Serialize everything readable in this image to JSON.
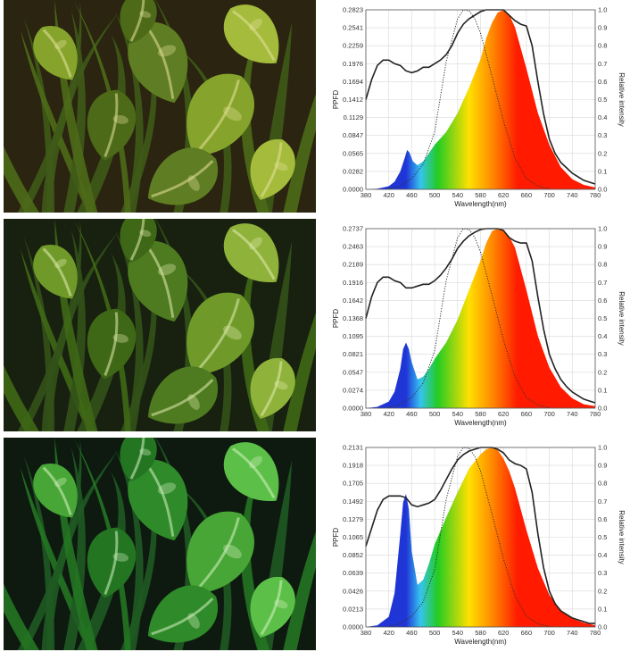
{
  "colors": {
    "frame": "#555555",
    "grid": "#d9d9d9",
    "ppfd_line": "#222222",
    "photopic_line": "#333333",
    "spectrum_blue": "#1f35d6",
    "spectrum_cyan": "#36c3f0",
    "spectrum_green": "#22cc22",
    "spectrum_yellow": "#ffe000",
    "spectrum_orange": "#ff8a00",
    "spectrum_red": "#ff1a00"
  },
  "rows": [
    {
      "photo": {
        "subject": "plant-foliage",
        "tint": "warm"
      },
      "chart_data": {
        "type": "area",
        "xlabel": "Wavelength(nm)",
        "ylabel": "PPFD",
        "y2label": "Relative intensity",
        "xlim": [
          380,
          780
        ],
        "ylim": [
          0,
          0.2823
        ],
        "y2lim": [
          0,
          1.0
        ],
        "x_ticks": [
          "380",
          "420",
          "460",
          "500",
          "540",
          "580",
          "620",
          "660",
          "700",
          "740",
          "780"
        ],
        "y_ticks": [
          "0.0000",
          "0.0282",
          "0.0565",
          "0.0847",
          "0.1129",
          "0.1412",
          "0.1694",
          "0.1976",
          "0.2259",
          "0.2541",
          "0.2823"
        ],
        "y2_ticks": [
          "0.0",
          "0.1",
          "0.2",
          "0.3",
          "0.4",
          "0.5",
          "0.6",
          "0.7",
          "0.8",
          "0.9",
          "1.0"
        ],
        "grid": true,
        "series": [
          {
            "kind": "spectrum-fill",
            "x": [
              380,
              400,
              420,
              430,
              440,
              448,
              452,
              456,
              462,
              470,
              480,
              490,
              500,
              520,
              540,
              560,
              580,
              590,
              600,
              610,
              620,
              630,
              640,
              660,
              680,
              700,
              720,
              740,
              760,
              780
            ],
            "y": [
              0,
              0.001,
              0.005,
              0.012,
              0.028,
              0.05,
              0.062,
              0.058,
              0.044,
              0.038,
              0.044,
              0.057,
              0.07,
              0.09,
              0.12,
              0.16,
              0.205,
              0.238,
              0.262,
              0.278,
              0.282,
              0.275,
              0.255,
              0.19,
              0.12,
              0.07,
              0.035,
              0.016,
              0.007,
              0.003
            ]
          },
          {
            "kind": "relative-line",
            "x": [
              380,
              390,
              400,
              410,
              420,
              430,
              440,
              450,
              460,
              470,
              480,
              490,
              500,
              510,
              520,
              530,
              540,
              550,
              560,
              570,
              580,
              590,
              600,
              610,
              620,
              630,
              640,
              650,
              660,
              670,
              680,
              690,
              700,
              710,
              720,
              730,
              740,
              750,
              760,
              770,
              780
            ],
            "y": [
              0.5,
              0.61,
              0.69,
              0.72,
              0.72,
              0.7,
              0.69,
              0.66,
              0.65,
              0.66,
              0.68,
              0.68,
              0.7,
              0.72,
              0.75,
              0.8,
              0.87,
              0.92,
              0.95,
              0.97,
              0.99,
              1.0,
              1.0,
              1.0,
              1.0,
              0.97,
              0.94,
              0.92,
              0.91,
              0.8,
              0.6,
              0.42,
              0.28,
              0.2,
              0.15,
              0.12,
              0.09,
              0.07,
              0.05,
              0.04,
              0.03
            ]
          },
          {
            "kind": "photopic-dotted",
            "x": [
              420,
              440,
              460,
              480,
              500,
              520,
              540,
              550,
              560,
              570,
              580,
              600,
              620,
              640,
              660,
              680,
              700
            ],
            "y": [
              0.005,
              0.02,
              0.06,
              0.14,
              0.32,
              0.71,
              0.95,
              1.0,
              0.995,
              0.95,
              0.87,
              0.63,
              0.38,
              0.175,
              0.06,
              0.017,
              0.004
            ]
          }
        ]
      }
    },
    {
      "photo": {
        "subject": "plant-foliage",
        "tint": "neutral"
      },
      "chart_data": {
        "type": "area",
        "xlabel": "Wavelength(nm)",
        "ylabel": "PPFD",
        "y2label": "Relative intensity",
        "xlim": [
          380,
          780
        ],
        "ylim": [
          0,
          0.2737
        ],
        "y2lim": [
          0,
          1.0
        ],
        "x_ticks": [
          "380",
          "420",
          "460",
          "500",
          "540",
          "580",
          "620",
          "660",
          "700",
          "740",
          "780"
        ],
        "y_ticks": [
          "0.0000",
          "0.0274",
          "0.0547",
          "0.0821",
          "0.1095",
          "0.1368",
          "0.1642",
          "0.1916",
          "0.2189",
          "0.2463",
          "0.2737"
        ],
        "y2_ticks": [
          "0.0",
          "0.1",
          "0.2",
          "0.3",
          "0.4",
          "0.5",
          "0.6",
          "0.7",
          "0.8",
          "0.9",
          "1.0"
        ],
        "grid": true,
        "series": [
          {
            "kind": "spectrum-fill",
            "x": [
              380,
              400,
              420,
              430,
              440,
              445,
              450,
              455,
              460,
              470,
              480,
              490,
              500,
              520,
              540,
              560,
              580,
              590,
              600,
              610,
              620,
              630,
              640,
              660,
              680,
              700,
              720,
              740,
              760,
              780
            ],
            "y": [
              0,
              0.002,
              0.01,
              0.025,
              0.06,
              0.09,
              0.1,
              0.09,
              0.07,
              0.044,
              0.048,
              0.06,
              0.075,
              0.1,
              0.135,
              0.18,
              0.225,
              0.252,
              0.27,
              0.2737,
              0.272,
              0.262,
              0.245,
              0.18,
              0.11,
              0.062,
              0.032,
              0.015,
              0.006,
              0.003
            ]
          },
          {
            "kind": "relative-line",
            "x": [
              380,
              390,
              400,
              410,
              420,
              430,
              440,
              450,
              460,
              470,
              480,
              490,
              500,
              510,
              520,
              530,
              540,
              550,
              560,
              570,
              580,
              590,
              600,
              610,
              620,
              630,
              640,
              650,
              660,
              670,
              680,
              690,
              700,
              710,
              720,
              730,
              740,
              750,
              760,
              770,
              780
            ],
            "y": [
              0.5,
              0.62,
              0.7,
              0.73,
              0.73,
              0.71,
              0.7,
              0.67,
              0.67,
              0.68,
              0.69,
              0.69,
              0.71,
              0.74,
              0.78,
              0.83,
              0.89,
              0.93,
              0.96,
              0.98,
              0.995,
              1.0,
              1.0,
              1.0,
              0.99,
              0.95,
              0.93,
              0.92,
              0.92,
              0.82,
              0.62,
              0.44,
              0.3,
              0.22,
              0.16,
              0.12,
              0.09,
              0.07,
              0.05,
              0.04,
              0.03
            ]
          },
          {
            "kind": "photopic-dotted",
            "x": [
              420,
              440,
              460,
              480,
              500,
              520,
              540,
              550,
              560,
              570,
              580,
              600,
              620,
              640,
              660,
              680,
              700
            ],
            "y": [
              0.005,
              0.02,
              0.06,
              0.14,
              0.32,
              0.71,
              0.95,
              1.0,
              0.995,
              0.95,
              0.87,
              0.63,
              0.38,
              0.175,
              0.06,
              0.017,
              0.004
            ]
          }
        ]
      }
    },
    {
      "photo": {
        "subject": "plant-foliage",
        "tint": "cool"
      },
      "chart_data": {
        "type": "area",
        "xlabel": "Wavelength(nm)",
        "ylabel": "PPFD",
        "y2label": "Relative intensity",
        "xlim": [
          380,
          780
        ],
        "ylim": [
          0,
          0.2131
        ],
        "y2lim": [
          0,
          1.0
        ],
        "x_ticks": [
          "380",
          "420",
          "460",
          "500",
          "540",
          "580",
          "620",
          "660",
          "700",
          "740",
          "780"
        ],
        "y_ticks": [
          "0.0000",
          "0.0213",
          "0.0426",
          "0.0639",
          "0.0852",
          "0.1065",
          "0.1279",
          "0.1492",
          "0.1705",
          "0.1918",
          "0.2131"
        ],
        "y2_ticks": [
          "0.0",
          "0.1",
          "0.2",
          "0.3",
          "0.4",
          "0.5",
          "0.6",
          "0.7",
          "0.8",
          "0.9",
          "1.0"
        ],
        "grid": true,
        "series": [
          {
            "kind": "spectrum-fill",
            "x": [
              380,
              400,
              420,
              430,
              440,
              445,
              450,
              455,
              460,
              470,
              480,
              490,
              500,
              520,
              540,
              560,
              580,
              590,
              600,
              610,
              620,
              630,
              640,
              660,
              680,
              700,
              720,
              740,
              760,
              780
            ],
            "y": [
              0,
              0.002,
              0.012,
              0.04,
              0.11,
              0.148,
              0.158,
              0.14,
              0.09,
              0.05,
              0.056,
              0.075,
              0.098,
              0.13,
              0.16,
              0.188,
              0.205,
              0.211,
              0.213,
              0.21,
              0.2,
              0.185,
              0.165,
              0.115,
              0.07,
              0.038,
              0.02,
              0.01,
              0.005,
              0.002
            ]
          },
          {
            "kind": "relative-line",
            "x": [
              380,
              390,
              400,
              410,
              420,
              430,
              440,
              450,
              460,
              470,
              480,
              490,
              500,
              510,
              520,
              530,
              540,
              550,
              560,
              570,
              580,
              590,
              600,
              610,
              620,
              630,
              640,
              650,
              660,
              670,
              680,
              690,
              700,
              710,
              720,
              730,
              740,
              750,
              760,
              770,
              780
            ],
            "y": [
              0.45,
              0.55,
              0.65,
              0.71,
              0.73,
              0.73,
              0.73,
              0.72,
              0.68,
              0.67,
              0.68,
              0.69,
              0.71,
              0.76,
              0.82,
              0.88,
              0.93,
              0.96,
              0.98,
              0.99,
              1.0,
              1.0,
              1.0,
              0.99,
              0.97,
              0.93,
              0.91,
              0.9,
              0.88,
              0.75,
              0.52,
              0.33,
              0.2,
              0.13,
              0.09,
              0.07,
              0.05,
              0.04,
              0.03,
              0.02,
              0.02
            ]
          },
          {
            "kind": "photopic-dotted",
            "x": [
              420,
              440,
              460,
              480,
              500,
              520,
              540,
              550,
              560,
              570,
              580,
              600,
              620,
              640,
              660,
              680,
              700
            ],
            "y": [
              0.005,
              0.02,
              0.06,
              0.14,
              0.32,
              0.71,
              0.95,
              1.0,
              0.995,
              0.95,
              0.87,
              0.63,
              0.38,
              0.175,
              0.06,
              0.017,
              0.004
            ]
          }
        ]
      }
    }
  ]
}
